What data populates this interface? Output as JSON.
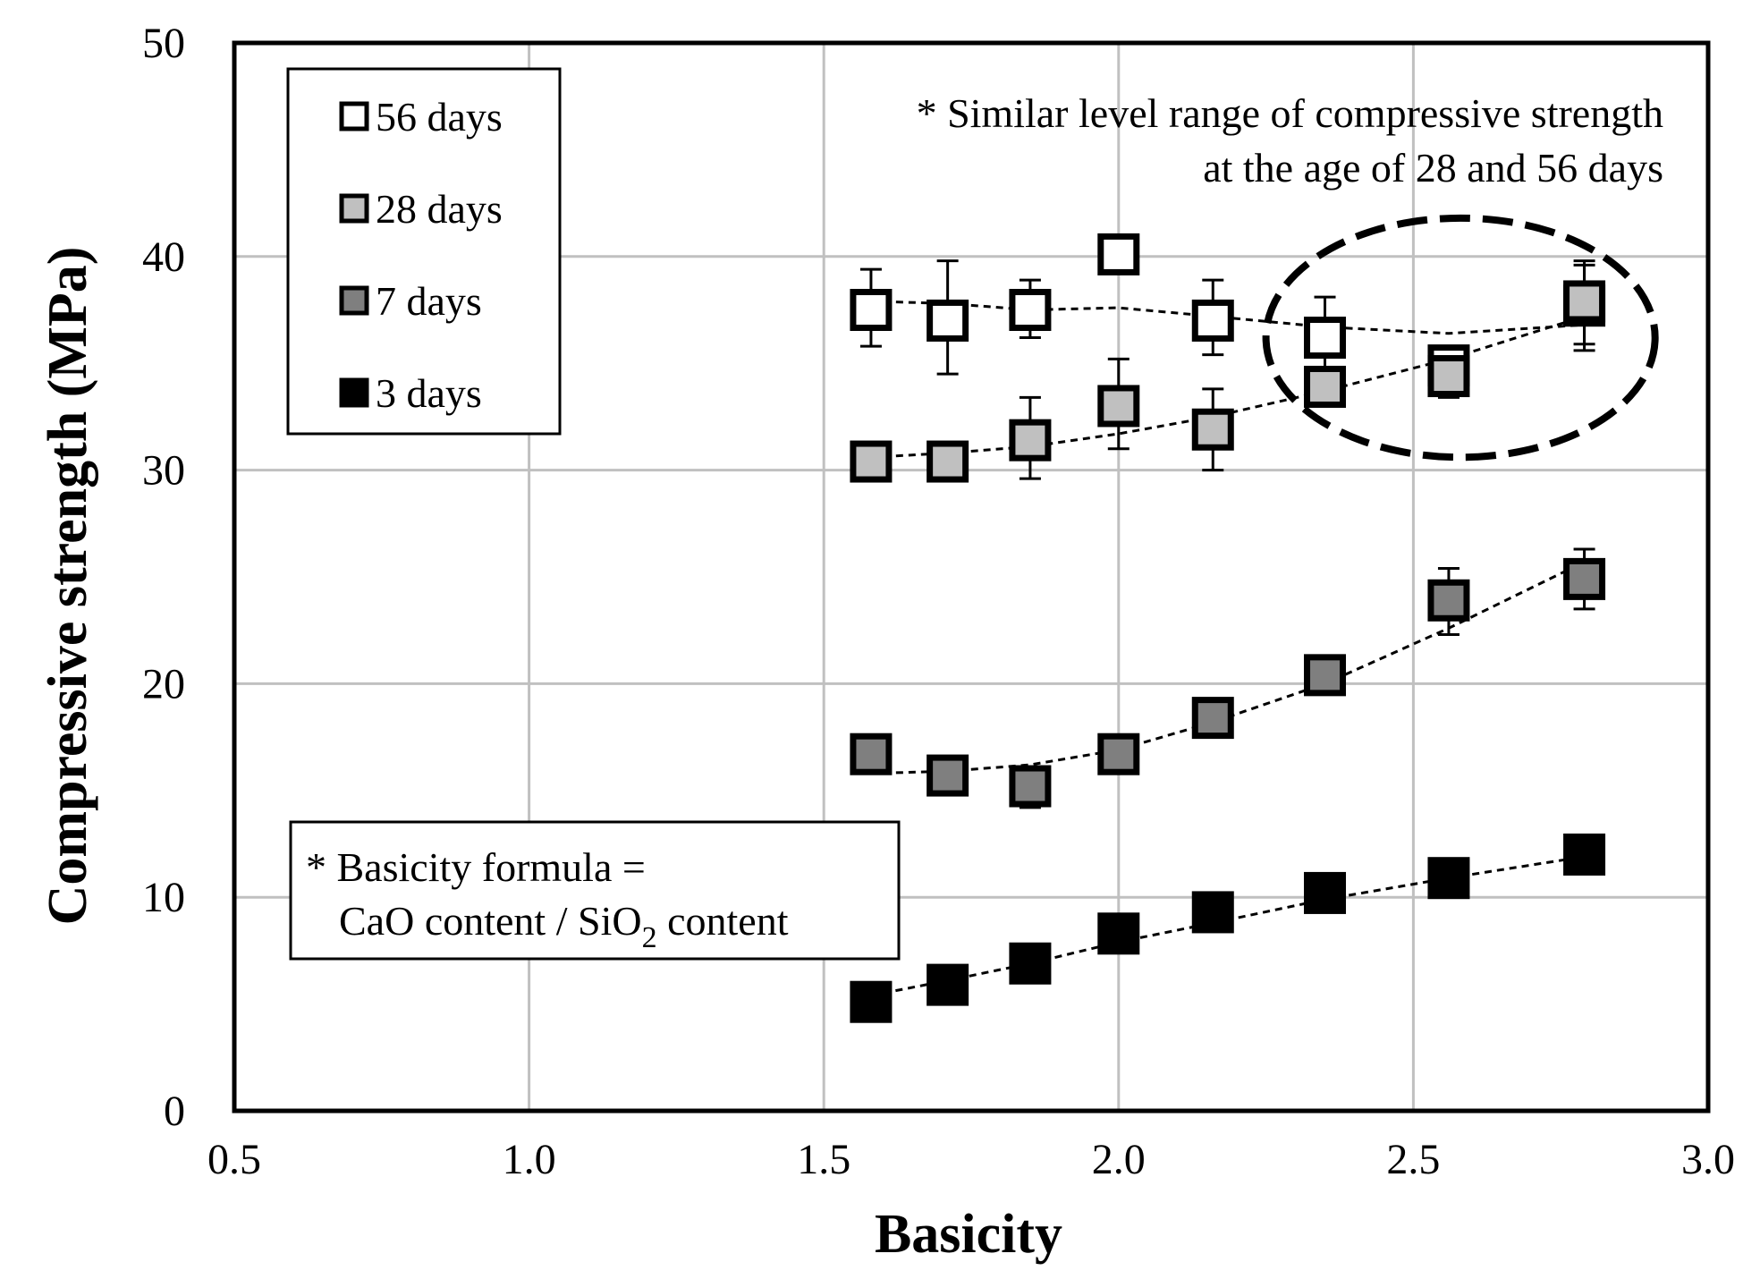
{
  "chart_data": {
    "type": "scatter",
    "title": "",
    "xlabel": "Basicity",
    "ylabel": "Compressive strength (MPa)",
    "xlim": [
      0.5,
      3.0
    ],
    "ylim": [
      0,
      50
    ],
    "x_ticks": [
      "0.5",
      "1.0",
      "1.5",
      "2.0",
      "2.5",
      "3.0"
    ],
    "y_ticks": [
      "0",
      "10",
      "20",
      "30",
      "40",
      "50"
    ],
    "grid": true,
    "legend_position": "top-left",
    "x": [
      1.58,
      1.71,
      1.85,
      2.0,
      2.16,
      2.35,
      2.56,
      2.79
    ],
    "series": [
      {
        "name": "56 days",
        "key": "d56",
        "color": "#ffffff",
        "values": [
          37.5,
          37.0,
          37.5,
          40.1,
          37.0,
          36.2,
          34.9,
          37.7
        ],
        "err_low": [
          35.8,
          34.5,
          36.2,
          39.2,
          35.4,
          34.2,
          33.6,
          35.6
        ],
        "err_high": [
          39.4,
          39.8,
          38.9,
          40.6,
          38.9,
          38.1,
          35.6,
          39.6
        ],
        "trend": [
          37.9,
          37.8,
          37.5,
          37.6,
          37.2,
          36.7,
          36.4,
          36.8
        ]
      },
      {
        "name": "28 days",
        "key": "d28",
        "color": "#c0c0c0",
        "values": [
          30.4,
          30.4,
          31.4,
          33.0,
          31.9,
          33.9,
          34.4,
          37.9
        ],
        "err_low": [
          30.2,
          30.2,
          29.6,
          31.0,
          30.0,
          33.7,
          33.4,
          35.9
        ],
        "err_high": [
          30.6,
          30.6,
          33.4,
          35.2,
          33.8,
          34.2,
          35.5,
          39.8
        ],
        "trend": [
          30.6,
          30.8,
          31.1,
          31.7,
          32.5,
          33.7,
          35.2,
          37.2
        ]
      },
      {
        "name": "7 days",
        "key": "d7",
        "color": "#7f7f7f",
        "values": [
          16.7,
          15.7,
          15.2,
          16.7,
          18.4,
          20.4,
          23.9,
          24.9
        ],
        "err_low": [
          16.0,
          15.2,
          14.2,
          16.1,
          17.9,
          19.8,
          22.3,
          23.5
        ],
        "err_high": [
          17.2,
          16.3,
          15.9,
          17.4,
          18.9,
          20.9,
          25.4,
          26.3
        ],
        "trend": [
          15.8,
          15.9,
          16.2,
          16.9,
          18.2,
          20.0,
          22.6,
          25.7
        ]
      },
      {
        "name": "3 days",
        "key": "d3",
        "color": "#000000",
        "values": [
          5.1,
          5.9,
          6.9,
          8.3,
          9.3,
          10.2,
          10.9,
          12.0
        ],
        "err_low": [
          5.1,
          5.9,
          6.9,
          8.3,
          9.3,
          10.2,
          10.9,
          12.0
        ],
        "err_high": [
          5.1,
          5.9,
          6.9,
          8.3,
          9.3,
          10.2,
          10.9,
          12.0
        ],
        "trend": [
          5.4,
          6.1,
          6.9,
          7.9,
          8.8,
          9.9,
          10.9,
          11.9
        ]
      }
    ],
    "annotations": {
      "top_note_line1": "* Similar  level range of compressive  strength",
      "top_note_line2": "at the age of 28 and 56 days",
      "formula_line1": "* Basicity  formula  =",
      "formula_cao": "CaO content  / SiO",
      "formula_sub": "2",
      "formula_tail": " content"
    },
    "highlight": {
      "label": "similar-range-ellipse",
      "cx": 2.58,
      "cy": 36.2,
      "rx": 0.33,
      "ry": 5.6
    }
  }
}
